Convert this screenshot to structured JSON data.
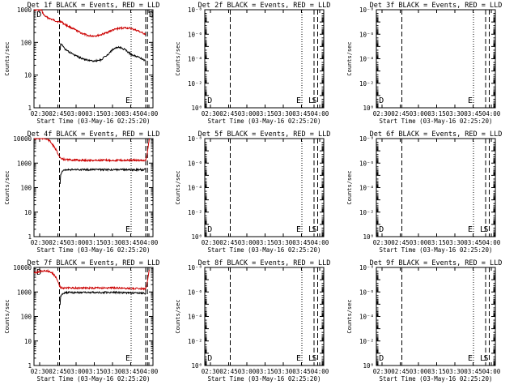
{
  "figure": {
    "background": "#ffffff",
    "axis_color": "#000000",
    "events_color": "#000000",
    "lld_color": "#cc0000"
  },
  "chart_data": [
    {
      "type": "line",
      "title": "Det 1f BLACK = Events, RED = LLD",
      "ylabel": "Counts/sec",
      "xlabel": "Start Time (03-May-16 02:25:20)",
      "x_ticks": [
        "02:30",
        "02:45",
        "03:00",
        "03:15",
        "03:30",
        "03:45",
        "04:00"
      ],
      "x_range_min": [
        0,
        98
      ],
      "yscale": "log",
      "ylim": [
        1,
        1000
      ],
      "y_tick_labels": [
        "1",
        "10",
        "100",
        "1000"
      ],
      "markers": [
        {
          "t": 21,
          "style": "dash",
          "label": ""
        },
        {
          "t": 80,
          "style": "dot",
          "label": "E"
        },
        {
          "t": 92,
          "style": "dash",
          "label": ""
        },
        {
          "t": 93.5,
          "style": "dash",
          "label": ""
        }
      ],
      "corner_labels": [
        {
          "t": 1.5,
          "text": "D"
        },
        {
          "t": 94,
          "text": "D"
        }
      ],
      "series": [
        {
          "role": "LLD",
          "color": "#cc0000",
          "x": [
            0,
            3,
            6,
            8,
            10,
            15,
            20,
            21.5,
            22,
            25,
            30,
            35,
            40,
            45,
            50,
            55,
            60,
            65,
            70,
            75,
            80,
            85,
            90,
            92
          ],
          "y": [
            1000,
            1000,
            1000,
            700,
            600,
            500,
            430,
            420,
            450,
            360,
            290,
            230,
            185,
            160,
            158,
            170,
            200,
            240,
            270,
            280,
            265,
            230,
            190,
            180
          ]
        },
        {
          "role": "Events",
          "color": "#000000",
          "x": [
            21.5,
            22,
            25,
            30,
            35,
            40,
            45,
            50,
            55,
            60,
            65,
            70,
            75,
            80,
            85,
            90,
            92
          ],
          "y": [
            55,
            95,
            65,
            48,
            38,
            32,
            28,
            27,
            29,
            40,
            62,
            72,
            60,
            43,
            37,
            30,
            28
          ]
        }
      ]
    },
    {
      "type": "line",
      "title": "Det 2f BLACK = Events, RED = LLD",
      "ylabel": "Counts/sec",
      "xlabel": "Start Time (03-May-16 02:25:20)",
      "x_ticks": [
        "02:30",
        "02:45",
        "03:00",
        "03:15",
        "03:30",
        "03:45",
        "04:00"
      ],
      "x_range_min": [
        0,
        98
      ],
      "yscale": "log",
      "ylim": [
        1,
        1e-08
      ],
      "y_tick_labels": [
        "10⁻⁸",
        "10⁻⁶",
        "10⁻⁴",
        "10⁻²",
        "10⁰"
      ],
      "y_tick_exps": [
        -8,
        -6,
        -4,
        -2,
        0
      ],
      "markers": [
        {
          "t": 21,
          "style": "dash",
          "label": ""
        },
        {
          "t": 80,
          "style": "dot",
          "label": "E"
        },
        {
          "t": 90,
          "style": "dash",
          "label": "L"
        },
        {
          "t": 93,
          "style": "dash",
          "label": "S"
        }
      ],
      "corner_labels": [
        {
          "t": 1.5,
          "text": "D"
        }
      ],
      "series": []
    },
    {
      "type": "line",
      "title": "Det 3f BLACK = Events, RED = LLD",
      "ylabel": "Counts/sec",
      "xlabel": "Start Time (03-May-16 02:25:20)",
      "x_ticks": [
        "02:30",
        "02:45",
        "03:00",
        "03:15",
        "03:30",
        "03:45",
        "04:00"
      ],
      "x_range_min": [
        0,
        98
      ],
      "yscale": "log",
      "ylim": [
        1,
        1e-08
      ],
      "y_tick_labels": [
        "10⁻⁸",
        "10⁻⁶",
        "10⁻⁴",
        "10⁻²",
        "10⁰"
      ],
      "y_tick_exps": [
        -8,
        -6,
        -4,
        -2,
        0
      ],
      "markers": [
        {
          "t": 21,
          "style": "dash",
          "label": ""
        },
        {
          "t": 80,
          "style": "dot",
          "label": "E"
        },
        {
          "t": 90,
          "style": "dash",
          "label": ""
        },
        {
          "t": 93,
          "style": "dash",
          "label": ""
        }
      ],
      "corner_labels": [
        {
          "t": 1.5,
          "text": "D"
        }
      ],
      "series": []
    },
    {
      "type": "line",
      "title": "Det 4f BLACK = Events, RED = LLD",
      "ylabel": "Counts/sec",
      "xlabel": "Start Time (03-May-16 02:25:20)",
      "x_ticks": [
        "02:30",
        "02:45",
        "03:00",
        "03:15",
        "03:30",
        "03:45",
        "04:00"
      ],
      "x_range_min": [
        0,
        98
      ],
      "yscale": "log",
      "ylim": [
        1,
        10000
      ],
      "y_tick_labels": [
        "1",
        "10",
        "100",
        "1000",
        "10000"
      ],
      "markers": [
        {
          "t": 21,
          "style": "dash",
          "label": ""
        },
        {
          "t": 80,
          "style": "dot",
          "label": "E"
        },
        {
          "t": 92,
          "style": "dash",
          "label": ""
        },
        {
          "t": 93.5,
          "style": "dash",
          "label": ""
        }
      ],
      "corner_labels": [],
      "series": [
        {
          "role": "LLD",
          "color": "#cc0000",
          "x": [
            0,
            5,
            10,
            13,
            16,
            19,
            21,
            22,
            25,
            30,
            40,
            50,
            60,
            70,
            80,
            90,
            92,
            93,
            95
          ],
          "y": [
            10000,
            10000,
            10000,
            8000,
            5000,
            3000,
            1800,
            1500,
            1400,
            1350,
            1300,
            1300,
            1300,
            1300,
            1300,
            1300,
            1350,
            2000,
            10000
          ]
        },
        {
          "role": "Events",
          "color": "#000000",
          "x": [
            21.5,
            22,
            24,
            30,
            40,
            50,
            60,
            70,
            80,
            90,
            92
          ],
          "y": [
            150,
            350,
            520,
            540,
            540,
            540,
            540,
            540,
            540,
            540,
            540
          ]
        }
      ]
    },
    {
      "type": "line",
      "title": "Det 5f BLACK = Events, RED = LLD",
      "ylabel": "Counts/sec",
      "xlabel": "Start Time (03-May-16 02:25:20)",
      "x_ticks": [
        "02:30",
        "02:45",
        "03:00",
        "03:15",
        "03:30",
        "03:45",
        "04:00"
      ],
      "x_range_min": [
        0,
        98
      ],
      "yscale": "log",
      "ylim": [
        1,
        1e-08
      ],
      "y_tick_labels": [
        "10⁻⁸",
        "10⁻⁶",
        "10⁻⁴",
        "10⁻²",
        "10⁰"
      ],
      "y_tick_exps": [
        -8,
        -6,
        -4,
        -2,
        0
      ],
      "markers": [
        {
          "t": 21,
          "style": "dash",
          "label": ""
        },
        {
          "t": 80,
          "style": "dot",
          "label": "E"
        },
        {
          "t": 90,
          "style": "dash",
          "label": "L"
        },
        {
          "t": 93,
          "style": "dash",
          "label": "S"
        }
      ],
      "corner_labels": [
        {
          "t": 1.5,
          "text": "D"
        }
      ],
      "series": []
    },
    {
      "type": "line",
      "title": "Det 6f BLACK = Events, RED = LLD",
      "ylabel": "Counts/sec",
      "xlabel": "Start Time (03-May-16 02:25:20)",
      "x_ticks": [
        "02:30",
        "02:45",
        "03:00",
        "03:15",
        "03:30",
        "03:45",
        "04:00"
      ],
      "x_range_min": [
        0,
        98
      ],
      "yscale": "log",
      "ylim": [
        1,
        1e-08
      ],
      "y_tick_labels": [
        "10⁻⁸",
        "10⁻⁶",
        "10⁻⁴",
        "10⁻²",
        "10⁰"
      ],
      "y_tick_exps": [
        -8,
        -6,
        -4,
        -2,
        0
      ],
      "markers": [
        {
          "t": 21,
          "style": "dash",
          "label": ""
        },
        {
          "t": 80,
          "style": "dot",
          "label": "E"
        },
        {
          "t": 90,
          "style": "dash",
          "label": "L"
        },
        {
          "t": 93,
          "style": "dash",
          "label": "S"
        }
      ],
      "corner_labels": [
        {
          "t": 1.5,
          "text": "D"
        }
      ],
      "series": []
    },
    {
      "type": "line",
      "title": "Det 7f BLACK = Events, RED = LLD",
      "ylabel": "Counts/sec",
      "xlabel": "Start Time (03-May-16 02:25:20)",
      "x_ticks": [
        "02:30",
        "02:45",
        "03:00",
        "03:15",
        "03:30",
        "03:45",
        "04:00"
      ],
      "x_range_min": [
        0,
        98
      ],
      "yscale": "log",
      "ylim": [
        1,
        10000
      ],
      "y_tick_labels": [
        "1",
        "10",
        "100",
        "1000",
        "10000"
      ],
      "markers": [
        {
          "t": 21,
          "style": "dash",
          "label": ""
        },
        {
          "t": 80,
          "style": "dot",
          "label": "E"
        },
        {
          "t": 92,
          "style": "dash",
          "label": ""
        },
        {
          "t": 93.5,
          "style": "dash",
          "label": ""
        }
      ],
      "corner_labels": [
        {
          "t": 1.5,
          "text": "D"
        }
      ],
      "series": [
        {
          "role": "LLD",
          "color": "#cc0000",
          "x": [
            0,
            3,
            6,
            9,
            12,
            15,
            18,
            20,
            21,
            22,
            25,
            30,
            40,
            50,
            60,
            70,
            80,
            90,
            92,
            93,
            94,
            95
          ],
          "y": [
            6000,
            6500,
            7000,
            7500,
            7000,
            6000,
            4000,
            2500,
            1800,
            1500,
            1450,
            1450,
            1450,
            1450,
            1450,
            1450,
            1400,
            1350,
            1400,
            2000,
            4000,
            8000
          ]
        },
        {
          "role": "Events",
          "color": "#000000",
          "x": [
            21.5,
            22,
            24,
            30,
            40,
            50,
            60,
            70,
            80,
            90,
            92
          ],
          "y": [
            300,
            700,
            900,
            950,
            950,
            950,
            950,
            950,
            920,
            880,
            870
          ]
        }
      ]
    },
    {
      "type": "line",
      "title": "Det 8f BLACK = Events, RED = LLD",
      "ylabel": "Counts/sec",
      "xlabel": "Start Time (03-May-16 02:25:20)",
      "x_ticks": [
        "02:30",
        "02:45",
        "03:00",
        "03:15",
        "03:30",
        "03:45",
        "04:00"
      ],
      "x_range_min": [
        0,
        98
      ],
      "yscale": "log",
      "ylim": [
        1,
        1e-08
      ],
      "y_tick_labels": [
        "10⁻⁸",
        "10⁻⁶",
        "10⁻⁴",
        "10⁻²",
        "10⁰"
      ],
      "y_tick_exps": [
        -8,
        -6,
        -4,
        -2,
        0
      ],
      "markers": [
        {
          "t": 21,
          "style": "dash",
          "label": ""
        },
        {
          "t": 80,
          "style": "dot",
          "label": "E"
        },
        {
          "t": 90,
          "style": "dash",
          "label": "L"
        },
        {
          "t": 93,
          "style": "dash",
          "label": "S"
        }
      ],
      "corner_labels": [
        {
          "t": 1.5,
          "text": "D"
        }
      ],
      "series": []
    },
    {
      "type": "line",
      "title": "Det 9f BLACK = Events, RED = LLD",
      "ylabel": "Counts/sec",
      "xlabel": "Start Time (03-May-16 02:25:20)",
      "x_ticks": [
        "02:30",
        "02:45",
        "03:00",
        "03:15",
        "03:30",
        "03:45",
        "04:00"
      ],
      "x_range_min": [
        0,
        98
      ],
      "yscale": "log",
      "ylim": [
        1,
        1e-08
      ],
      "y_tick_labels": [
        "10⁻⁸",
        "10⁻⁶",
        "10⁻⁴",
        "10⁻²",
        "10⁰"
      ],
      "y_tick_exps": [
        -8,
        -6,
        -4,
        -2,
        0
      ],
      "markers": [
        {
          "t": 21,
          "style": "dash",
          "label": ""
        },
        {
          "t": 80,
          "style": "dot",
          "label": "E"
        },
        {
          "t": 90,
          "style": "dash",
          "label": "L"
        },
        {
          "t": 93,
          "style": "dash",
          "label": "S"
        }
      ],
      "corner_labels": [
        {
          "t": 1.5,
          "text": "D"
        }
      ],
      "series": []
    }
  ]
}
